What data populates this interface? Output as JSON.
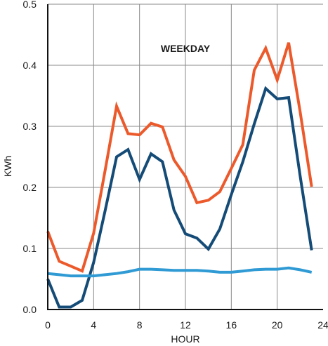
{
  "chart_data": {
    "type": "line",
    "title": "WEEKDAY",
    "xlabel": "HOUR",
    "ylabel": "KWh",
    "xlim": [
      0,
      24
    ],
    "ylim": [
      0,
      0.5
    ],
    "x_ticks": [
      "0",
      "4",
      "8",
      "12",
      "16",
      "20",
      "24"
    ],
    "y_ticks": [
      "0.0",
      "0.1",
      "0.2",
      "0.3",
      "0.4",
      "0.5"
    ],
    "grid": true,
    "x": [
      0,
      1,
      2,
      3,
      4,
      5,
      6,
      7,
      8,
      9,
      10,
      11,
      12,
      13,
      14,
      15,
      16,
      17,
      18,
      19,
      20,
      21,
      22,
      23
    ],
    "series": [
      {
        "color": "#ec5a2c",
        "values": [
          0.128,
          0.079,
          0.071,
          0.063,
          0.125,
          0.228,
          0.333,
          0.288,
          0.286,
          0.305,
          0.299,
          0.245,
          0.218,
          0.175,
          0.179,
          0.193,
          0.231,
          0.27,
          0.392,
          0.428,
          0.376,
          0.437,
          0.324,
          0.201
        ]
      },
      {
        "color": "#144b77",
        "values": [
          0.05,
          0.004,
          0.004,
          0.015,
          0.077,
          0.162,
          0.25,
          0.262,
          0.213,
          0.255,
          0.242,
          0.163,
          0.124,
          0.117,
          0.099,
          0.132,
          0.188,
          0.242,
          0.304,
          0.362,
          0.345,
          0.347,
          0.219,
          0.097
        ]
      },
      {
        "color": "#2f9ad4",
        "values": [
          0.059,
          0.057,
          0.055,
          0.055,
          0.055,
          0.057,
          0.059,
          0.062,
          0.066,
          0.066,
          0.065,
          0.064,
          0.064,
          0.064,
          0.063,
          0.061,
          0.061,
          0.063,
          0.065,
          0.066,
          0.066,
          0.068,
          0.065,
          0.061
        ]
      }
    ]
  }
}
